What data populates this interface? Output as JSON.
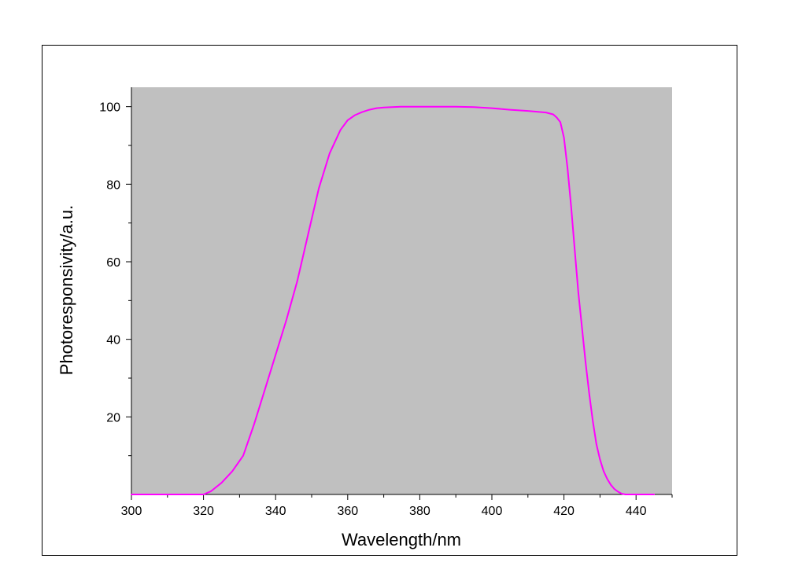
{
  "chart_data": {
    "type": "line",
    "title": "",
    "xlabel": "Wavelength/nm",
    "ylabel": "Photoresponsivity/a.u.",
    "xlim": [
      300,
      450
    ],
    "ylim": [
      0,
      105
    ],
    "x_major_ticks": [
      300,
      320,
      340,
      360,
      380,
      400,
      420,
      440
    ],
    "y_major_ticks": [
      20,
      40,
      60,
      80,
      100
    ],
    "grid": false,
    "legend": "none",
    "plot_background": "#c0c0c0",
    "series": [
      {
        "color": "#ff00ff",
        "x": [
          300,
          305,
          310,
          315,
          318,
          320,
          322,
          325,
          328,
          331,
          334,
          337,
          340,
          343,
          346,
          349,
          352,
          355,
          358,
          360,
          362,
          364,
          366,
          368,
          370,
          375,
          380,
          385,
          390,
          395,
          400,
          405,
          410,
          415,
          417,
          418,
          419,
          420,
          421,
          422,
          423,
          424,
          425,
          426,
          427,
          428,
          429,
          430,
          431,
          432,
          433,
          434,
          435,
          436,
          437,
          438,
          440,
          442,
          445
        ],
        "y": [
          0,
          0,
          0,
          0,
          0,
          0,
          0.8,
          3,
          6,
          10,
          18,
          27,
          36,
          45,
          55,
          67,
          79,
          88,
          94,
          96.5,
          97.8,
          98.6,
          99.2,
          99.6,
          99.8,
          100,
          100,
          100,
          100,
          99.9,
          99.6,
          99.2,
          98.9,
          98.5,
          98,
          97.2,
          96,
          92,
          84,
          74,
          63,
          52,
          43,
          34,
          26,
          19,
          13,
          9,
          6,
          4,
          2.5,
          1.4,
          0.7,
          0.2,
          0,
          0,
          0,
          0,
          0
        ]
      }
    ]
  }
}
